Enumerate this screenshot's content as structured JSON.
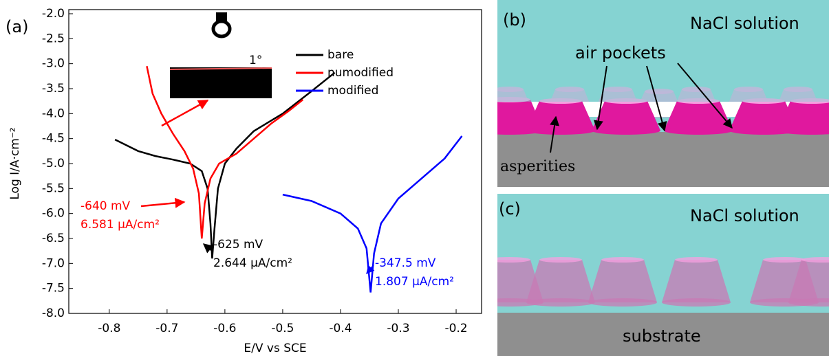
{
  "chart_data": {
    "type": "line",
    "panel_label": "(a)",
    "xlabel": "E/V vs SCE",
    "ylabel": "Log I/A·cm⁻²",
    "xlim": [
      -0.87,
      -0.156
    ],
    "ylim": [
      -8,
      -2
    ],
    "xticks": [
      -0.8,
      -0.7,
      -0.6,
      -0.5,
      -0.4,
      -0.3,
      -0.2
    ],
    "yticks": [
      {
        "value": -2,
        "label": "-2.0"
      },
      -2.5,
      {
        "value": -3,
        "label": "-3.0"
      },
      -3.5,
      {
        "value": -4,
        "label": "-4.0"
      },
      -4.5,
      {
        "value": -5,
        "label": "-5.0"
      },
      -5.5,
      {
        "value": -6,
        "label": "-6.0"
      },
      -6.5,
      {
        "value": -7,
        "label": "-7.0"
      },
      -7.5,
      {
        "value": -8,
        "label": "-8.0"
      }
    ],
    "legend": "upper right",
    "series": [
      {
        "name": "bare",
        "color": "#000000",
        "x": [
          -0.79,
          -0.75,
          -0.72,
          -0.69,
          -0.66,
          -0.64,
          -0.63,
          -0.625,
          -0.622,
          -0.618,
          -0.612,
          -0.6,
          -0.58,
          -0.55,
          -0.5,
          -0.45,
          -0.41
        ],
        "values": [
          -4.52,
          -4.75,
          -4.85,
          -4.92,
          -5.0,
          -5.15,
          -5.5,
          -6.2,
          -6.9,
          -6.3,
          -5.5,
          -5.0,
          -4.7,
          -4.35,
          -4.0,
          -3.55,
          -3.18
        ]
      },
      {
        "name": "numodified",
        "color": "#ff0000",
        "x": [
          -0.735,
          -0.725,
          -0.71,
          -0.69,
          -0.67,
          -0.655,
          -0.645,
          -0.64,
          -0.635,
          -0.625,
          -0.61,
          -0.58,
          -0.55,
          -0.52,
          -0.49,
          -0.465
        ],
        "values": [
          -3.05,
          -3.6,
          -4.0,
          -4.4,
          -4.75,
          -5.1,
          -5.6,
          -6.5,
          -5.8,
          -5.3,
          -5.0,
          -4.8,
          -4.5,
          -4.2,
          -3.95,
          -3.72
        ]
      },
      {
        "name": "modified",
        "color": "#0000ff",
        "x": [
          -0.5,
          -0.45,
          -0.4,
          -0.37,
          -0.355,
          -0.348,
          -0.342,
          -0.33,
          -0.3,
          -0.26,
          -0.22,
          -0.19
        ],
        "values": [
          -5.62,
          -5.75,
          -6.0,
          -6.3,
          -6.7,
          -7.58,
          -6.8,
          -6.2,
          -5.7,
          -5.3,
          -4.9,
          -4.45
        ]
      }
    ],
    "annotations": [
      {
        "text": "1°",
        "color": "#000000"
      },
      {
        "text": "-640 mV",
        "color": "#ff0000"
      },
      {
        "text": "6.581 μA/cm²",
        "color": "#ff0000"
      },
      {
        "text": "-625 mV",
        "color": "#000000"
      },
      {
        "text": "2.644 μA/cm²",
        "color": "#000000"
      },
      {
        "text": "-347.5 mV",
        "color": "#0000ff"
      },
      {
        "text": "1.807 μA/cm²",
        "color": "#0000ff"
      }
    ]
  },
  "panels": {
    "b": {
      "label": "(b)",
      "medium": "NaCl solution",
      "pockets": "air pockets",
      "asperities": "asperities"
    },
    "c": {
      "label": "(c)",
      "medium": "NaCl solution",
      "substrate": "substrate"
    }
  }
}
